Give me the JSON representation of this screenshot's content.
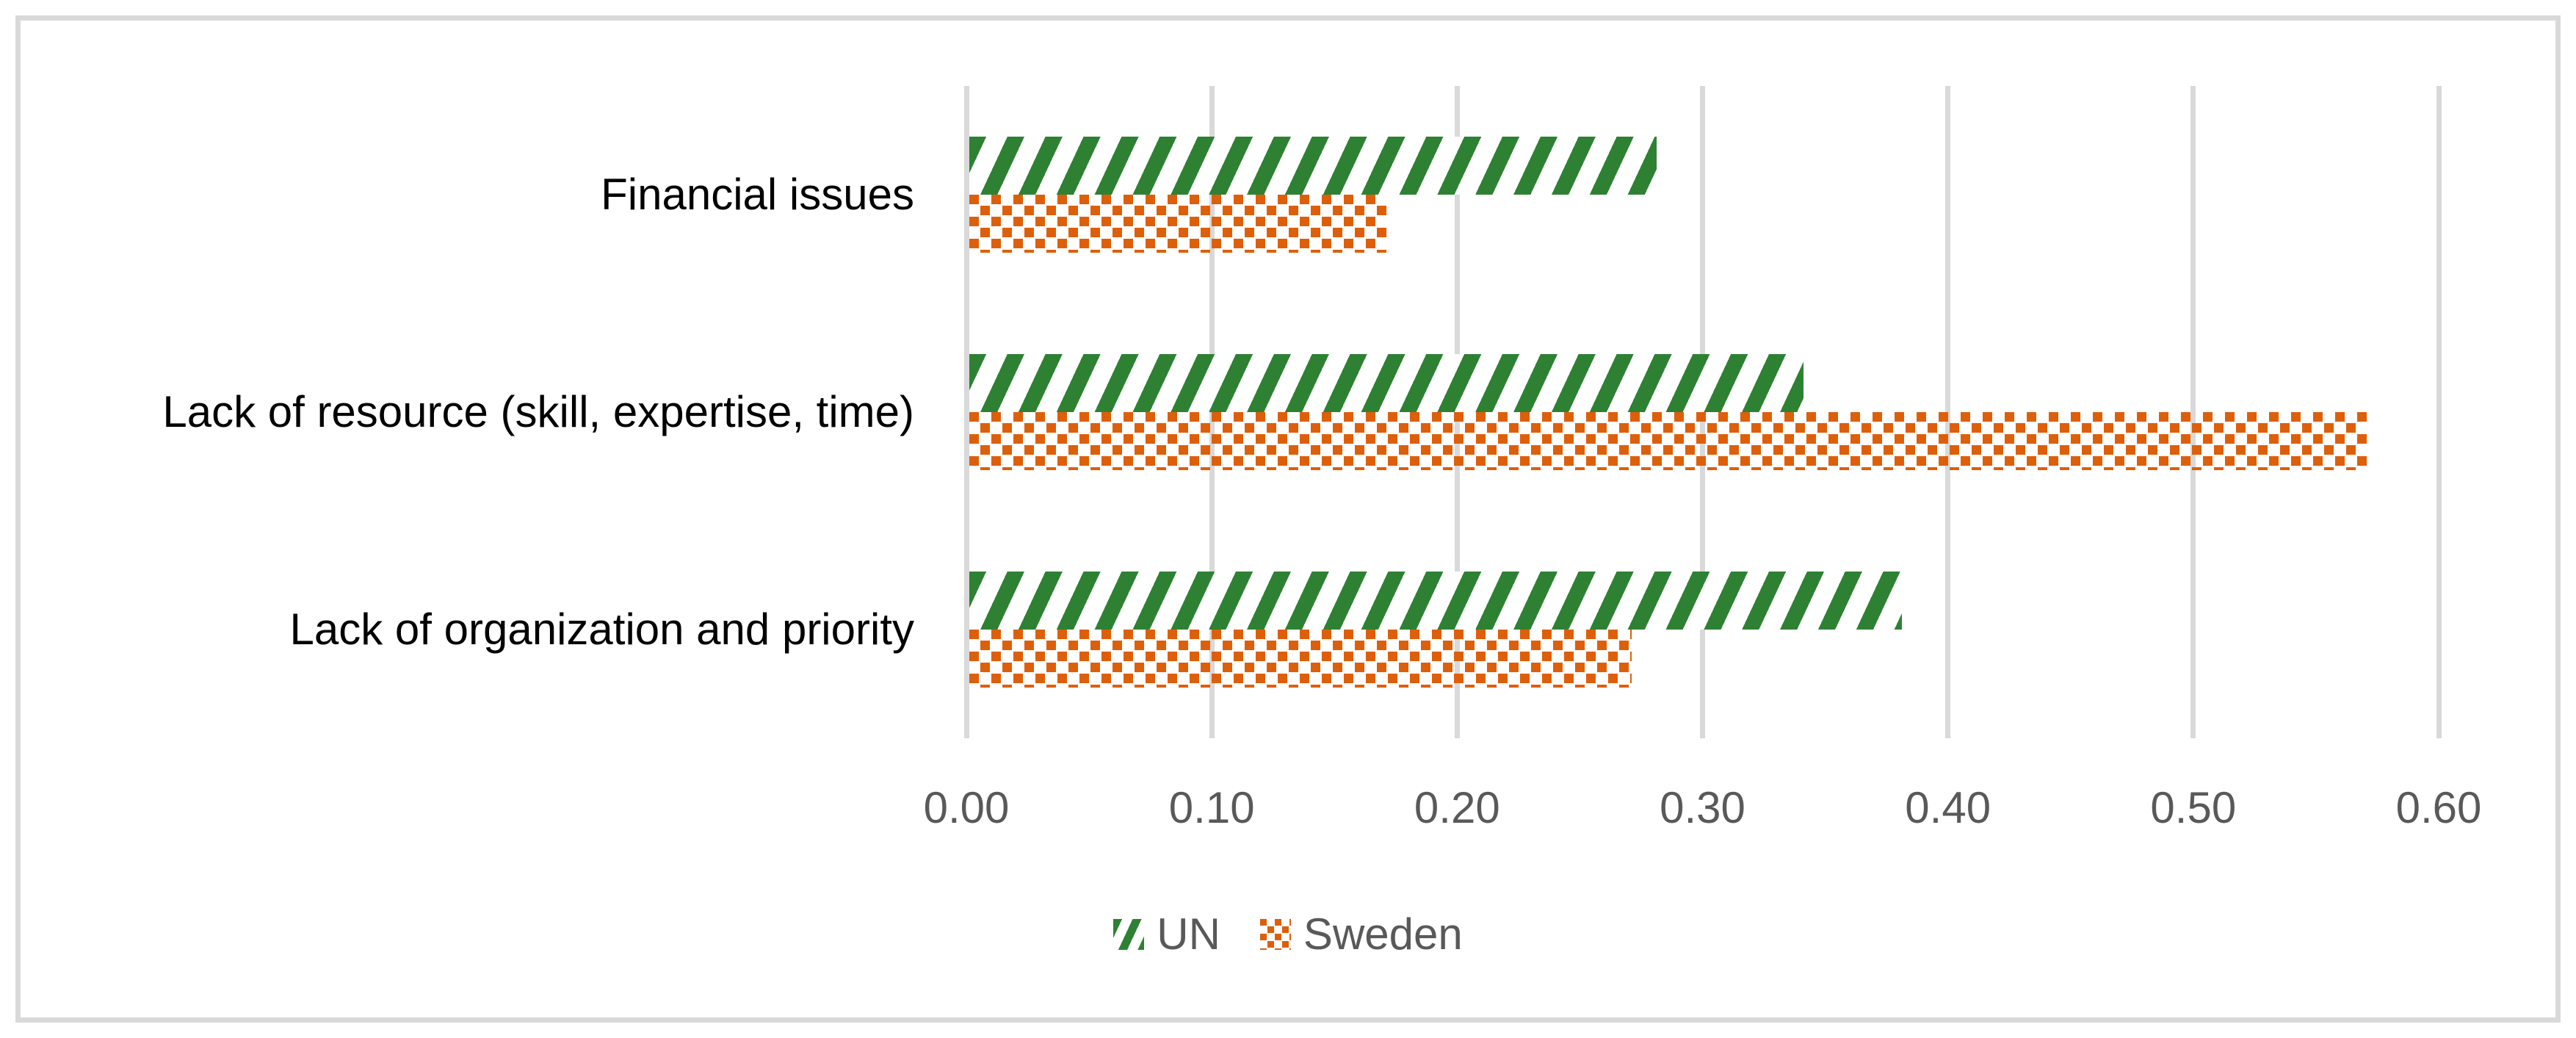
{
  "chart_data": {
    "type": "bar",
    "orientation": "horizontal",
    "title": "",
    "categories": [
      "Financial issues",
      "Lack of resource (skill, expertise, time)",
      "Lack of organization and priority"
    ],
    "series": [
      {
        "name": "UN",
        "values": [
          0.28,
          0.34,
          0.38
        ],
        "color": "#2E8133",
        "pattern": "diagonal-stripes"
      },
      {
        "name": "Sweden",
        "values": [
          0.17,
          0.57,
          0.27
        ],
        "color": "#DE5F0A",
        "pattern": "dotted-squares"
      }
    ],
    "xlim": [
      0,
      0.6
    ],
    "x_tick_labels": [
      "0.00",
      "0.10",
      "0.20",
      "0.30",
      "0.40",
      "0.50",
      "0.60"
    ],
    "grid": true,
    "legend_position": "bottom-center",
    "legend_labels": [
      "UN",
      "Sweden"
    ]
  },
  "colors": {
    "background": "#FFFFFF",
    "figure_border": "#D9D9D9",
    "gridline": "#D9D9D9",
    "tick_text": "#595959",
    "legend_text": "#595959",
    "category_text": "#000000",
    "un_fill": "#2E8133",
    "sweden_fill": "#DE5F0A"
  }
}
